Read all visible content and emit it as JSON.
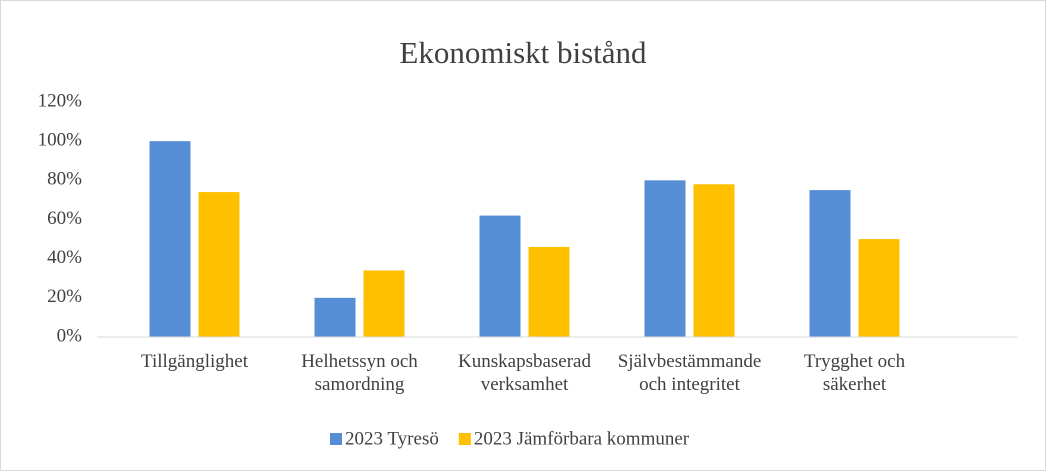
{
  "chart_data": {
    "type": "bar",
    "title": "Ekonomiskt bistånd",
    "categories": [
      "Tillgänglighet",
      "Helhetssyn och samordning",
      "Kunskapsbaserad verksamhet",
      "Självbestämmande och integritet",
      "Trygghet och säkerhet"
    ],
    "series": [
      {
        "name": "2023 Tyresö",
        "color": "#558ed5",
        "values": [
          100,
          20,
          62,
          80,
          75
        ]
      },
      {
        "name": "2023 Jämförbara kommuner",
        "color": "#ffc000",
        "values": [
          74,
          34,
          46,
          78,
          50
        ]
      }
    ],
    "ylim": [
      0,
      120
    ],
    "yticks": [
      {
        "value": 0,
        "label": "0%"
      },
      {
        "value": 20,
        "label": "20%"
      },
      {
        "value": 40,
        "label": "40%"
      },
      {
        "value": 60,
        "label": "60%"
      },
      {
        "value": 80,
        "label": "80%"
      },
      {
        "value": 100,
        "label": "100%"
      },
      {
        "value": 120,
        "label": "120%"
      }
    ],
    "grid": false,
    "legend": "bottom"
  }
}
